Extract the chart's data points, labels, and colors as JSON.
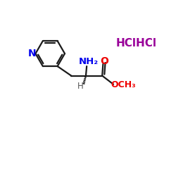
{
  "background_color": "#ffffff",
  "bond_color": "#1a1a1a",
  "N_color": "#0000ee",
  "O_color": "#ee0000",
  "HCl_color": "#990099",
  "figure_size": [
    2.5,
    2.5
  ],
  "dpi": 100,
  "HCl_text": "HClHCl",
  "NH2_text": "NH₂",
  "H_text": "H",
  "O_text": "O",
  "OMe_text": "OCH₃"
}
